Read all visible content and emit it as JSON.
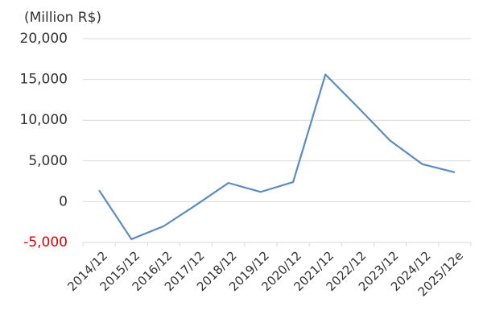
{
  "chart_data": {
    "type": "line",
    "y_label": "(Million R$)",
    "categories": [
      "2014/12",
      "2015/12",
      "2016/12",
      "2017/12",
      "2018/12",
      "2019/12",
      "2020/12",
      "2021/12",
      "2022/12",
      "2023/12",
      "2024/12",
      "2025/12e"
    ],
    "values": [
      1400,
      -4600,
      -3000,
      -400,
      2300,
      1200,
      2400,
      15600,
      11600,
      7500,
      4600,
      3600
    ],
    "color": "#5b8bc0",
    "ylim": [
      -5000,
      20000
    ],
    "yticks": [
      {
        "value": -5000,
        "label": "-5,000"
      },
      0,
      {
        "value": 5000,
        "label": "5,000"
      },
      {
        "value": 10000,
        "label": "10,000"
      },
      {
        "value": 15000,
        "label": "15,000"
      },
      {
        "value": 20000,
        "label": "20,000"
      }
    ],
    "negative_tick_color": "#e00000",
    "grid": true
  }
}
